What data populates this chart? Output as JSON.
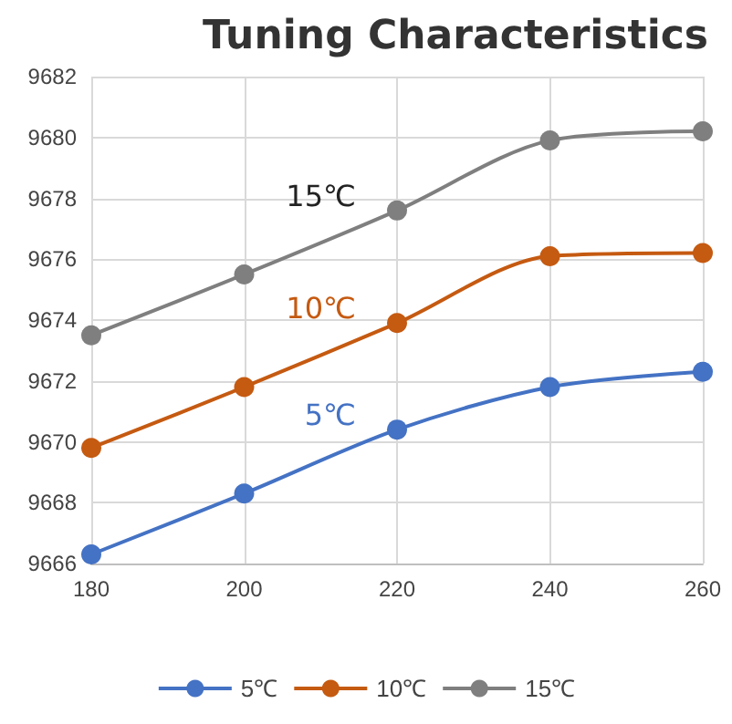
{
  "chart_data": {
    "type": "line",
    "title": "Tuning Characteristics",
    "x": [
      180,
      200,
      220,
      240,
      260
    ],
    "series": [
      {
        "name": "5℃",
        "color": "#4472c4",
        "values": [
          9666.3,
          9668.3,
          9670.4,
          9671.8,
          9672.3
        ]
      },
      {
        "name": "10℃",
        "color": "#c55a11",
        "values": [
          9669.8,
          9671.8,
          9673.9,
          9676.1,
          9676.2
        ]
      },
      {
        "name": "15℃",
        "color": "#7f7f7f",
        "values": [
          9673.5,
          9675.5,
          9677.6,
          9679.9,
          9680.2
        ]
      }
    ],
    "xlim": [
      180,
      260
    ],
    "xticks": [
      180,
      200,
      220,
      240,
      260
    ],
    "ylim": [
      9666,
      9682
    ],
    "yticks": [
      9666,
      9668,
      9670,
      9672,
      9674,
      9676,
      9678,
      9680,
      9682
    ],
    "grid": true,
    "legend": "bottom",
    "marker": "circle",
    "line_style": "solid"
  }
}
